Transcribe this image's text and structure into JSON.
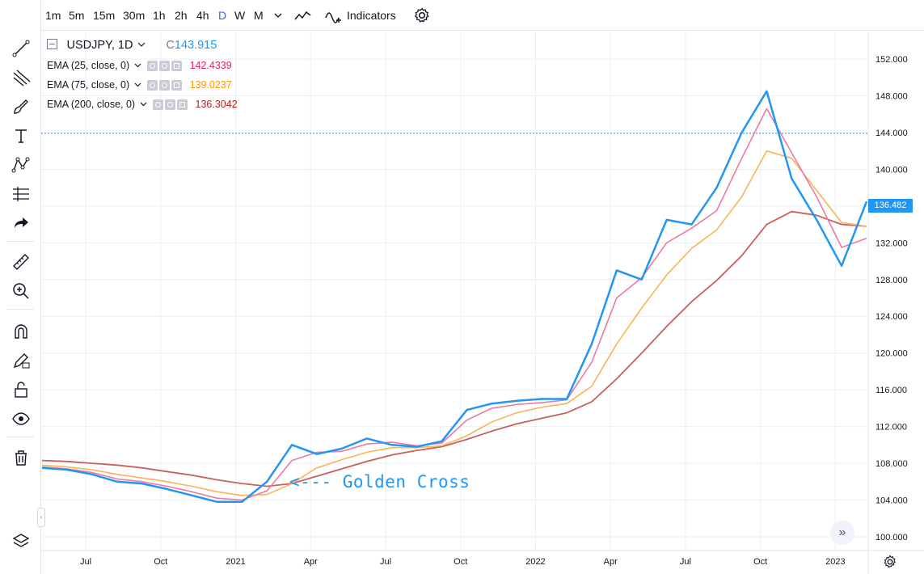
{
  "topbar": {
    "intervals": [
      "1m",
      "5m",
      "15m",
      "30m",
      "1h",
      "2h",
      "4h",
      "D",
      "W",
      "M"
    ],
    "active_interval": "D",
    "indicators_label": "Indicators"
  },
  "legend": {
    "symbol": "USDJPY, 1D",
    "close_prefix": "C",
    "close_value": "143.915",
    "emas": [
      {
        "label": "EMA (25, close, 0)",
        "value": "142.4339",
        "color": "#e91e63"
      },
      {
        "label": "EMA (75, close, 0)",
        "value": "139.0237",
        "color": "#ff9800"
      },
      {
        "label": "EMA (200, close, 0)",
        "value": "136.3042",
        "color": "#b71c1c"
      }
    ]
  },
  "price_axis": {
    "ticks": [
      "152.000",
      "148.000",
      "144.000",
      "140.000",
      "136.000",
      "132.000",
      "128.000",
      "124.000",
      "120.000",
      "116.000",
      "112.000",
      "108.000",
      "104.000",
      "100.000"
    ],
    "current_price_label": "136.482"
  },
  "time_axis": {
    "ticks": [
      "Jul",
      "Oct",
      "2021",
      "Apr",
      "Jul",
      "Oct",
      "2022",
      "Apr",
      "Jul",
      "Oct",
      "2023"
    ]
  },
  "annotation": {
    "text": "<--- Golden Cross"
  },
  "chart_data": {
    "type": "line",
    "symbol": "USDJPY",
    "interval": "1D",
    "ylim": [
      98.5,
      155.0
    ],
    "y_scale": "linear",
    "grid": true,
    "horizontal_line": 143.915,
    "colors": {
      "price": "#2196f3",
      "ema25": "#ec7aa1",
      "ema75": "#f9b457",
      "ema200": "#c9605e",
      "grid": "#eceef3",
      "hline": "#2196f3"
    },
    "x": [
      "2020-05",
      "2020-06",
      "2020-07",
      "2020-08",
      "2020-09",
      "2020-10",
      "2020-11",
      "2020-12",
      "2021-01",
      "2021-02",
      "2021-03",
      "2021-04",
      "2021-05",
      "2021-06",
      "2021-07",
      "2021-08",
      "2021-09",
      "2021-10",
      "2021-11",
      "2021-12",
      "2022-01",
      "2022-02",
      "2022-03",
      "2022-04",
      "2022-05",
      "2022-06",
      "2022-07",
      "2022-08",
      "2022-09",
      "2022-10",
      "2022-11",
      "2022-12",
      "2023-01",
      "2023-02"
    ],
    "series": [
      {
        "name": "USDJPY",
        "values": [
          107.5,
          107.3,
          106.8,
          106.0,
          105.8,
          105.2,
          104.5,
          103.8,
          103.8,
          106.0,
          110.0,
          109.0,
          109.6,
          110.7,
          110.0,
          109.8,
          110.4,
          113.8,
          114.5,
          114.8,
          115.0,
          115.0,
          121.0,
          129.0,
          128.0,
          134.5,
          134.0,
          138.0,
          144.0,
          148.5,
          139.0,
          134.5,
          129.5,
          136.5
        ]
      },
      {
        "name": "EMA (25, close, 0)",
        "values": [
          107.6,
          107.4,
          107.0,
          106.3,
          106.0,
          105.5,
          104.9,
          104.2,
          104.0,
          105.0,
          108.3,
          109.2,
          109.3,
          110.1,
          110.3,
          109.9,
          110.2,
          112.7,
          114.0,
          114.4,
          114.6,
          114.9,
          119.0,
          126.0,
          128.2,
          132.0,
          133.6,
          135.5,
          141.2,
          146.6,
          141.8,
          137.0,
          131.5,
          132.5
        ]
      },
      {
        "name": "EMA (75, close, 0)",
        "values": [
          107.8,
          107.6,
          107.3,
          106.8,
          106.4,
          106.0,
          105.5,
          104.9,
          104.5,
          104.6,
          105.8,
          107.5,
          108.4,
          109.2,
          109.7,
          109.7,
          109.9,
          111.0,
          112.5,
          113.5,
          114.1,
          114.5,
          116.4,
          121.0,
          124.9,
          128.5,
          131.4,
          133.4,
          137.0,
          142.0,
          141.2,
          137.7,
          134.2,
          133.8
        ]
      },
      {
        "name": "EMA (200, close, 0)",
        "values": [
          108.3,
          108.2,
          108.0,
          107.8,
          107.5,
          107.1,
          106.7,
          106.2,
          105.8,
          105.5,
          105.8,
          106.6,
          107.4,
          108.2,
          108.9,
          109.4,
          109.8,
          110.6,
          111.5,
          112.3,
          112.9,
          113.5,
          114.7,
          117.2,
          120.0,
          122.9,
          125.6,
          127.9,
          130.6,
          134.0,
          135.4,
          135.0,
          134.0,
          133.8
        ]
      }
    ]
  }
}
